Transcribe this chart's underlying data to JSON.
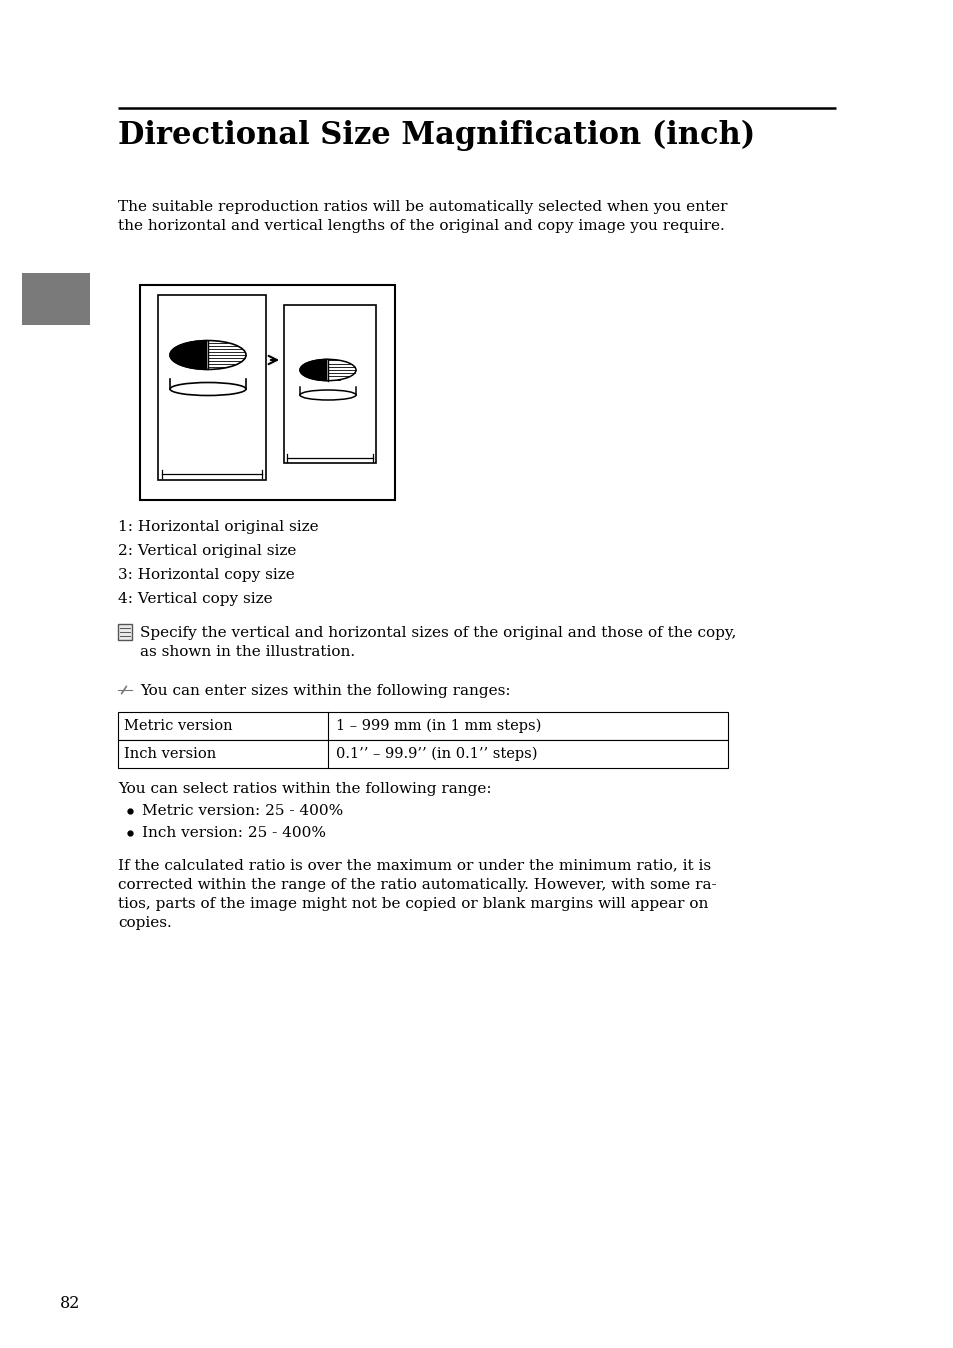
{
  "bg_color": "#ffffff",
  "title": "Directional Size Magnification (inch)",
  "intro_text": "The suitable reproduction ratios will be automatically selected when you enter\nthe horizontal and vertical lengths of the original and copy image you require.",
  "labels": [
    "1: Horizontal original size",
    "2: Vertical original size",
    "3: Horizontal copy size",
    "4: Vertical copy size"
  ],
  "note_text": "Specify the vertical and horizontal sizes of the original and those of the copy,\nas shown in the illustration.",
  "pencil_text": "You can enter sizes within the following ranges:",
  "table_col1": [
    "Metric version",
    "Inch version"
  ],
  "table_col2": [
    "1 – 999 mm (in 1 mm steps)",
    "0.1’’ – 99.9’’ (in 0.1’’ steps)"
  ],
  "ratios_title": "You can select ratios within the following range:",
  "bullets": [
    "Metric version: 25 - 400%",
    "Inch version: 25 - 400%"
  ],
  "final_text": "If the calculated ratio is over the maximum or under the minimum ratio, it is\ncorrected within the range of the ratio automatically. However, with some ra-\ntios, parts of the image might not be copied or blank margins will appear on\ncopies.",
  "page_number": "82",
  "gray_rect_color": "#7a7a7a",
  "text_color": "#000000",
  "line_color": "#000000"
}
